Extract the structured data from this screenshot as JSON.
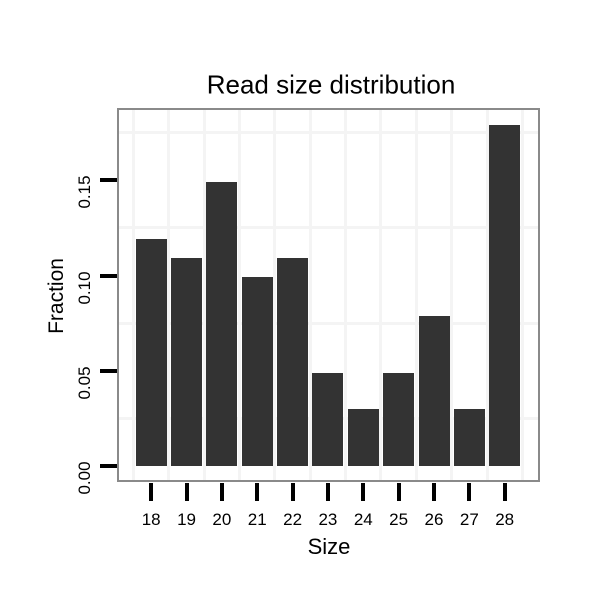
{
  "chart_data": {
    "type": "bar",
    "title": "Read size distribution",
    "xlabel": "Size",
    "ylabel": "Fraction",
    "categories": [
      "18",
      "19",
      "20",
      "21",
      "22",
      "23",
      "24",
      "25",
      "26",
      "27",
      "28"
    ],
    "values": [
      0.119,
      0.109,
      0.149,
      0.099,
      0.109,
      0.049,
      0.03,
      0.049,
      0.079,
      0.03,
      0.179
    ],
    "ylim": [
      0,
      0.186
    ],
    "yticks": [
      0,
      0.05,
      0.1,
      0.15
    ],
    "ytick_labels": [
      "0.00",
      "0.05",
      "0.10",
      "0.15"
    ],
    "minor_gridlines_y": [
      0.025,
      0.075,
      0.125,
      0.175
    ],
    "grid": "faint minor gridlines only, horizontal at 0.025 steps offset and vertical between categories",
    "legend_position": "none",
    "colors": {
      "bar": "#333333",
      "panel_border": "#8a8a8a",
      "gridline_minor": "#f4f4f4",
      "tick": "#000000",
      "text": "#000000",
      "background": "#ffffff"
    }
  }
}
